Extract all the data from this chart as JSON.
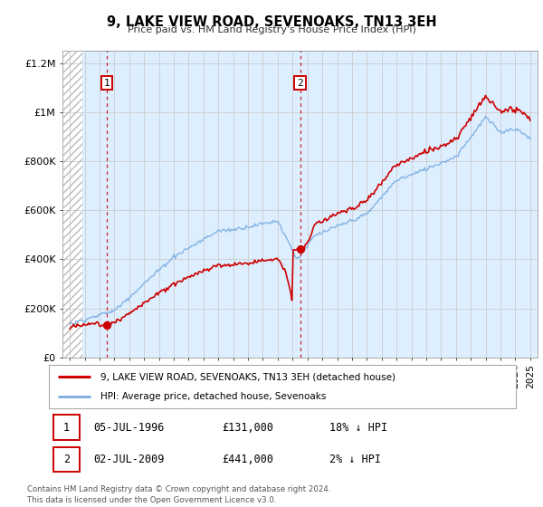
{
  "title": "9, LAKE VIEW ROAD, SEVENOAKS, TN13 3EH",
  "subtitle": "Price paid vs. HM Land Registry's House Price Index (HPI)",
  "legend_label_red": "9, LAKE VIEW ROAD, SEVENOAKS, TN13 3EH (detached house)",
  "legend_label_blue": "HPI: Average price, detached house, Sevenoaks",
  "footnote1": "Contains HM Land Registry data © Crown copyright and database right 2024.",
  "footnote2": "This data is licensed under the Open Government Licence v3.0.",
  "point1_date": "05-JUL-1996",
  "point1_price": "£131,000",
  "point1_hpi": "18% ↓ HPI",
  "point2_date": "02-JUL-2009",
  "point2_price": "£441,000",
  "point2_hpi": "2% ↓ HPI",
  "point1_x": 1996.5,
  "point1_y": 131000,
  "point2_x": 2009.5,
  "point2_y": 441000,
  "hatch_end_year": 1994.85,
  "red_color": "#cc0000",
  "blue_color": "#7aade0",
  "blue_bg_color": "#ddeeff",
  "grid_color": "#cccccc",
  "hatch_color": "#bbbbbb",
  "ylim_min": 0,
  "ylim_max": 1250000,
  "xlim_min": 1993.5,
  "xlim_max": 2025.5,
  "yticks": [
    0,
    200000,
    400000,
    600000,
    800000,
    1000000,
    1200000
  ],
  "xtick_start": 1994,
  "xtick_end": 2025
}
